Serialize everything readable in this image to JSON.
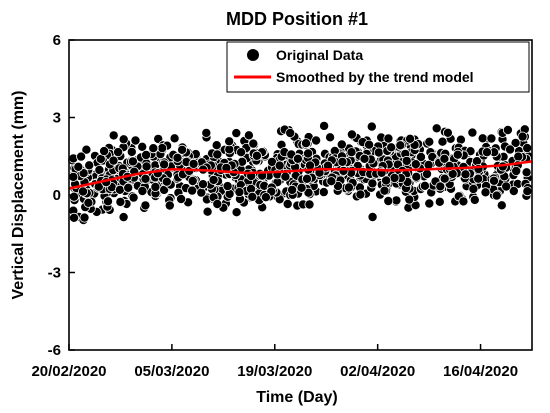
{
  "chart_data": {
    "type": "scatter",
    "title": "MDD Position #1",
    "xlabel": "Time (Day)",
    "ylabel": "Vertical Displacement (mm)",
    "x_start": "2020-02-20",
    "x_end": "2020-04-23",
    "xticks": [
      "20/02/2020",
      "05/03/2020",
      "19/03/2020",
      "02/04/2020",
      "16/04/2020"
    ],
    "xtick_dates": [
      "2020-02-20",
      "2020-03-05",
      "2020-03-19",
      "2020-04-02",
      "2020-04-16"
    ],
    "ylim": [
      -6,
      6
    ],
    "yticks": [
      -6,
      -3,
      0,
      3,
      6
    ],
    "legend_position": "top-right",
    "colors": {
      "original": "#000000",
      "trend": "#ff0000"
    },
    "series": [
      {
        "name": "Original Data",
        "kind": "scatter",
        "y_range": [
          -1.2,
          3.0
        ],
        "points_per_day": 16
      },
      {
        "name": "Smoothed by the trend model",
        "kind": "line",
        "x": [
          "2020-02-20",
          "2020-02-24",
          "2020-02-29",
          "2020-03-05",
          "2020-03-10",
          "2020-03-15",
          "2020-03-20",
          "2020-03-25",
          "2020-03-30",
          "2020-04-04",
          "2020-04-09",
          "2020-04-14",
          "2020-04-19",
          "2020-04-23"
        ],
        "y": [
          0.25,
          0.5,
          0.8,
          1.0,
          0.95,
          0.85,
          0.9,
          1.0,
          1.0,
          0.95,
          1.0,
          1.05,
          1.15,
          1.3
        ]
      }
    ]
  }
}
